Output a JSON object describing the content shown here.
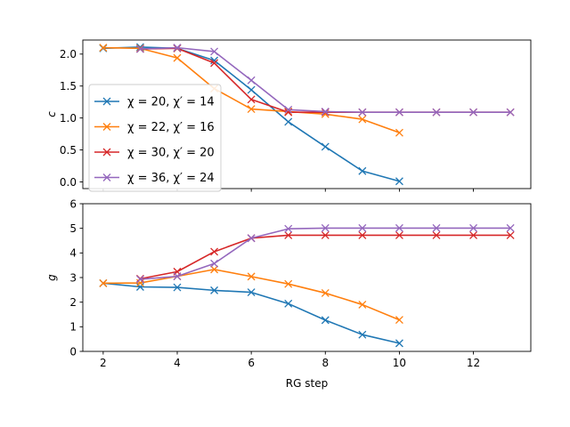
{
  "chart_data": [
    {
      "type": "line",
      "ylabel": "c",
      "xlabel": "",
      "xlim": [
        1.45,
        13.55
      ],
      "ylim": [
        -0.105,
        2.22
      ],
      "xticks": [
        2,
        4,
        6,
        8,
        10,
        12
      ],
      "xtick_labels_shown": false,
      "yticks": [
        0.0,
        0.5,
        1.0,
        1.5,
        2.0
      ],
      "ytick_labels": [
        "0.0",
        "0.5",
        "1.0",
        "1.5",
        "2.0"
      ],
      "grid": false,
      "legend": "lower-left",
      "series": [
        {
          "name": "χ = 20, χ′ = 14",
          "color": "#1f77b4",
          "x": [
            2,
            3,
            4,
            5,
            6,
            7,
            8,
            9,
            10
          ],
          "y": [
            2.09,
            2.11,
            2.09,
            1.9,
            1.44,
            0.94,
            0.55,
            0.17,
            0.01
          ]
        },
        {
          "name": "χ = 22, χ′ = 16",
          "color": "#ff7f0e",
          "x": [
            2,
            3,
            4,
            5,
            6,
            7,
            8,
            9,
            10
          ],
          "y": [
            2.1,
            2.09,
            1.94,
            1.46,
            1.14,
            1.1,
            1.06,
            0.98,
            0.77
          ]
        },
        {
          "name": "χ = 30, χ′ = 20",
          "color": "#d62728",
          "x": [
            3,
            4,
            5,
            6,
            7,
            8,
            9,
            10,
            11,
            12,
            13
          ],
          "y": [
            2.08,
            2.09,
            1.86,
            1.29,
            1.09,
            1.09,
            1.09,
            1.09,
            1.09,
            1.09,
            1.09
          ]
        },
        {
          "name": "χ = 36, χ′ = 24",
          "color": "#9467bd",
          "x": [
            3,
            4,
            5,
            6,
            7,
            8,
            9,
            10,
            11,
            12,
            13
          ],
          "y": [
            2.08,
            2.1,
            2.04,
            1.59,
            1.13,
            1.1,
            1.09,
            1.09,
            1.09,
            1.09,
            1.09
          ]
        }
      ]
    },
    {
      "type": "line",
      "ylabel": "g",
      "xlabel": "RG step",
      "xlim": [
        1.45,
        13.55
      ],
      "ylim": [
        0,
        6
      ],
      "xticks": [
        2,
        4,
        6,
        8,
        10,
        12
      ],
      "xtick_labels": [
        "2",
        "4",
        "6",
        "8",
        "10",
        "12"
      ],
      "yticks": [
        0,
        1,
        2,
        3,
        4,
        5,
        6
      ],
      "ytick_labels": [
        "0",
        "1",
        "2",
        "3",
        "4",
        "5",
        "6"
      ],
      "grid": false,
      "legend": "none",
      "series": [
        {
          "color": "#1f77b4",
          "x": [
            2,
            3,
            4,
            5,
            6,
            7,
            8,
            9,
            10
          ],
          "y": [
            2.77,
            2.62,
            2.6,
            2.48,
            2.4,
            1.94,
            1.27,
            0.68,
            0.33
          ]
        },
        {
          "color": "#ff7f0e",
          "x": [
            2,
            3,
            4,
            5,
            6,
            7,
            8,
            9,
            10
          ],
          "y": [
            2.77,
            2.78,
            3.05,
            3.33,
            3.04,
            2.74,
            2.37,
            1.9,
            1.28
          ]
        },
        {
          "color": "#d62728",
          "x": [
            3,
            4,
            5,
            6,
            7,
            8,
            9,
            10,
            11,
            12,
            13
          ],
          "y": [
            2.95,
            3.24,
            4.05,
            4.6,
            4.72,
            4.72,
            4.72,
            4.72,
            4.72,
            4.72,
            4.72
          ]
        },
        {
          "color": "#9467bd",
          "x": [
            3,
            4,
            5,
            6,
            7,
            8,
            9,
            10,
            11,
            12,
            13
          ],
          "y": [
            2.93,
            3.05,
            3.57,
            4.6,
            4.98,
            5.01,
            5.01,
            5.01,
            5.01,
            5.01,
            5.01
          ]
        }
      ]
    }
  ]
}
